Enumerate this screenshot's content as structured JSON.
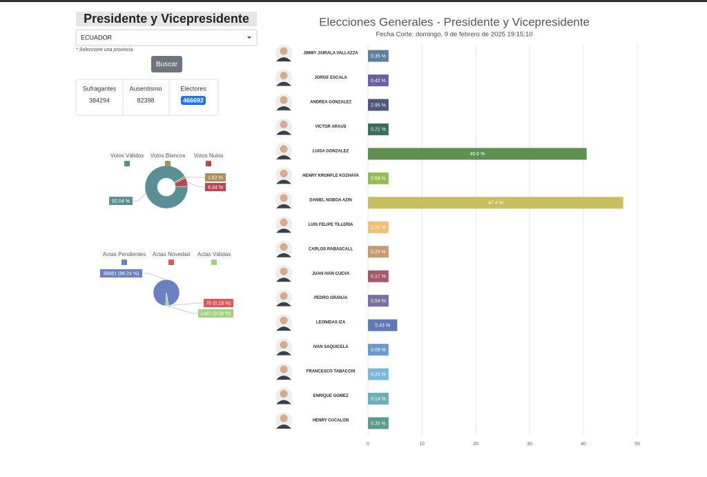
{
  "header": {
    "title": "Presidente y Vicepresidente"
  },
  "filter": {
    "select": "ECUADOR",
    "hint": "* Seleccione una provincia",
    "button": "Buscar"
  },
  "stats": [
    {
      "label": "Sufragantes",
      "value": 384294
    },
    {
      "label": "Ausentismo",
      "value": 82398
    },
    {
      "label": "Electores",
      "value": 466692
    }
  ],
  "chart_data": [
    {
      "type": "donut",
      "categories": [
        "Votos Válidos",
        "Votos Blancos",
        "Votos Nulos"
      ],
      "values": [
        92.04,
        1.62,
        6.34
      ],
      "value_labels": [
        "92.04 %",
        "1.62 %",
        "6.34 %"
      ],
      "colors": [
        "#5b8f96",
        "#a8915c",
        "#b8474f"
      ]
    },
    {
      "type": "pie",
      "categories": [
        "Actas Pendientes",
        "Actas Novedad",
        "Actas Válidas"
      ],
      "values": [
        39981,
        76,
        1487
      ],
      "value_labels": [
        "39981 (96.24 %)",
        "76 (0.18 %)",
        "1487 (3.58 %)"
      ],
      "colors": [
        "#6a80c2",
        "#e25656",
        "#a6d07e"
      ]
    },
    {
      "type": "bar",
      "orientation": "horizontal",
      "title": "Elecciones Generales - Presidente y Vicepresidente",
      "subtitle": "Fecha Corte: domingo, 9 de febrero de 2025 19:15:10",
      "categories": [
        "JIMMY JAIRALA VALLAZZA",
        "JORGE ESCALA",
        "ANDREA GONZALEZ",
        "VICTOR ARAUS",
        "LUISA GONZALEZ",
        "HENRY KRONFLE KOZHAYA",
        "DANIEL NOBOA AZIN",
        "LUIS FELIPE TILLERIA",
        "CARLOS RABASCALL",
        "JUAN IVAN CUEVA",
        "PEDRO GRANJA",
        "LEONIDAS IZA",
        "IVAN SAQUICELA",
        "FRANCESCO TABACCHI",
        "ENRIQUE GOMEZ",
        "HENRY CUCALON"
      ],
      "values": [
        0.35,
        0.42,
        2.95,
        0.21,
        40.6,
        0.58,
        47.4,
        0.32,
        0.23,
        0.17,
        0.54,
        5.43,
        0.09,
        0.25,
        0.14,
        0.35
      ],
      "value_labels": [
        "0.35 %",
        "0.42 %",
        "2.95 %",
        "0.21 %",
        "40.6 %",
        "0.58 %",
        "47.4 %",
        "0.32 %",
        "0.23 %",
        "0.17 %",
        "0.54 %",
        "5.43 %",
        "0.09 %",
        "0.25 %",
        "0.14 %",
        "0.35 %"
      ],
      "colors": [
        "#5f7e9e",
        "#6b5fa0",
        "#4f5878",
        "#3b6b5a",
        "#5e8e50",
        "#8fbf50",
        "#c8c060",
        "#f0c070",
        "#c89a70",
        "#a05a6a",
        "#7a6fa0",
        "#5f78b8",
        "#6a9ad0",
        "#7ab8d8",
        "#6ab0b8",
        "#5a9a8a"
      ],
      "xlim": [
        0,
        50
      ],
      "xticks": [
        0,
        10,
        20,
        30,
        40,
        50
      ],
      "grid": true
    }
  ]
}
